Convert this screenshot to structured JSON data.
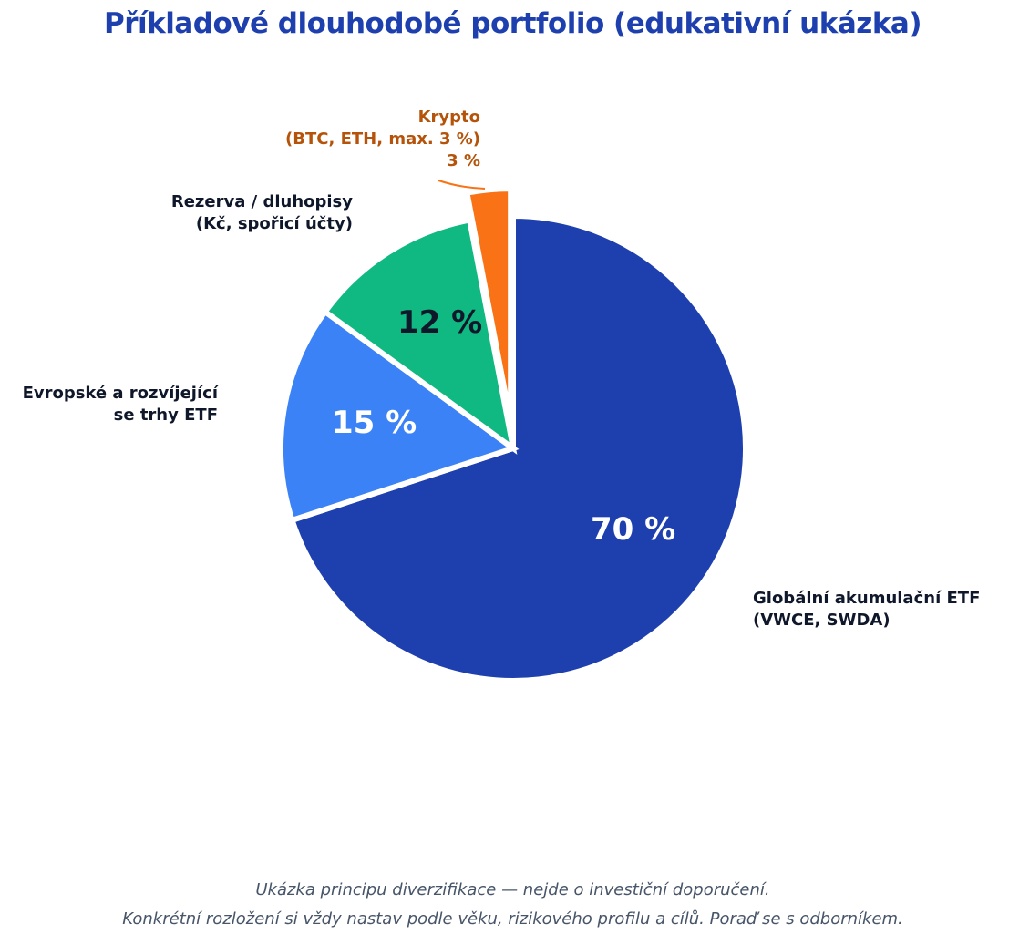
{
  "title": "Příkladové dlouhodobé portfolio (edukativní ukázka)",
  "labels": {
    "global": {
      "line1": "Globální akumulační ETF",
      "line2": "(VWCE, SWDA)",
      "pct": "70 %"
    },
    "europe": {
      "line1": "Evropské a rozvíjející",
      "line2": "se trhy ETF",
      "pct": "15 %"
    },
    "reserve": {
      "line1": "Rezerva / dluhopisy",
      "line2": "(Kč, spořicí účty)",
      "pct": "12 %"
    },
    "crypto": {
      "line1": "Krypto",
      "line2": "(BTC, ETH, max. 3 %)",
      "pct": "3 %"
    }
  },
  "footer": {
    "line1": "Ukázka principu diverzifikace — nejde o investiční doporučení.",
    "line2": "Konkrétní rozložení si vždy nastav podle věku, rizikového profilu a cílů. Poraď se s odborníkem."
  },
  "colors": {
    "title": "#1e40af",
    "global": "#1e40af",
    "europe": "#3b82f6",
    "reserve": "#10b981",
    "crypto": "#f97316",
    "crypto_label": "#b45309",
    "footer": "#475569"
  },
  "chart_data": {
    "type": "pie",
    "title": "Příkladové dlouhodobé portfolio (edukativní ukázka)",
    "categories": [
      "Globální akumulační ETF (VWCE, SWDA)",
      "Evropské a rozvíjející se trhy ETF",
      "Rezerva / dluhopisy (Kč, spořicí účty)",
      "Krypto (BTC, ETH, max. 3 %)"
    ],
    "values": [
      70,
      15,
      12,
      3
    ],
    "value_labels": [
      "70 %",
      "15 %",
      "12 %",
      "3 %"
    ],
    "colors": [
      "#1e40af",
      "#3b82f6",
      "#10b981",
      "#f97316"
    ],
    "start_angle": 90,
    "direction": "clockwise",
    "exploded": [
      false,
      false,
      false,
      true
    ],
    "legend": "none (direct labels)"
  }
}
